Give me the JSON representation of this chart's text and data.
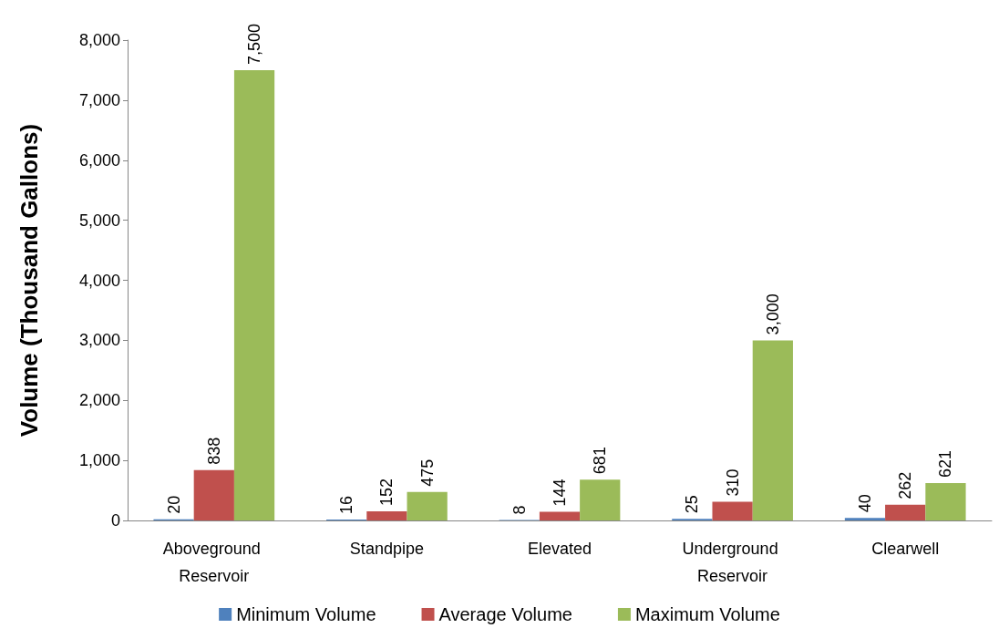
{
  "chart_data": {
    "type": "bar",
    "ylabel": "Volume (Thousand Gallons)",
    "categories": [
      "Aboveground Reservoir",
      "Standpipe",
      "Elevated",
      "Underground Reservoir",
      "Clearwell"
    ],
    "series": [
      {
        "name": "Minimum Volume",
        "color": "#4f81bd",
        "values": [
          20,
          16,
          8,
          25,
          40
        ],
        "value_labels": [
          "20",
          "16",
          "8",
          "25",
          "40"
        ]
      },
      {
        "name": "Average Volume",
        "color": "#c0504d",
        "values": [
          838,
          152,
          144,
          310,
          262
        ],
        "value_labels": [
          "838",
          "152",
          "144",
          "310",
          "262"
        ]
      },
      {
        "name": "Maximum Volume",
        "color": "#9bbb59",
        "values": [
          7500,
          475,
          681,
          3000,
          621
        ],
        "value_labels": [
          "7,500",
          "475",
          "681",
          "3,000",
          "621"
        ]
      }
    ],
    "ylim": [
      0,
      8000
    ],
    "yticks": [
      0,
      {
        "value": 1000,
        "label": "1,000"
      },
      {
        "value": 2000,
        "label": "2,000"
      },
      {
        "value": 3000,
        "label": "3,000"
      },
      {
        "value": 4000,
        "label": "4,000"
      },
      {
        "value": 5000,
        "label": "5,000"
      },
      {
        "value": 6000,
        "label": "6,000"
      },
      {
        "value": 7000,
        "label": "7,000"
      },
      {
        "value": 8000,
        "label": "8,000"
      }
    ],
    "grid": false,
    "legend": "bottom"
  }
}
